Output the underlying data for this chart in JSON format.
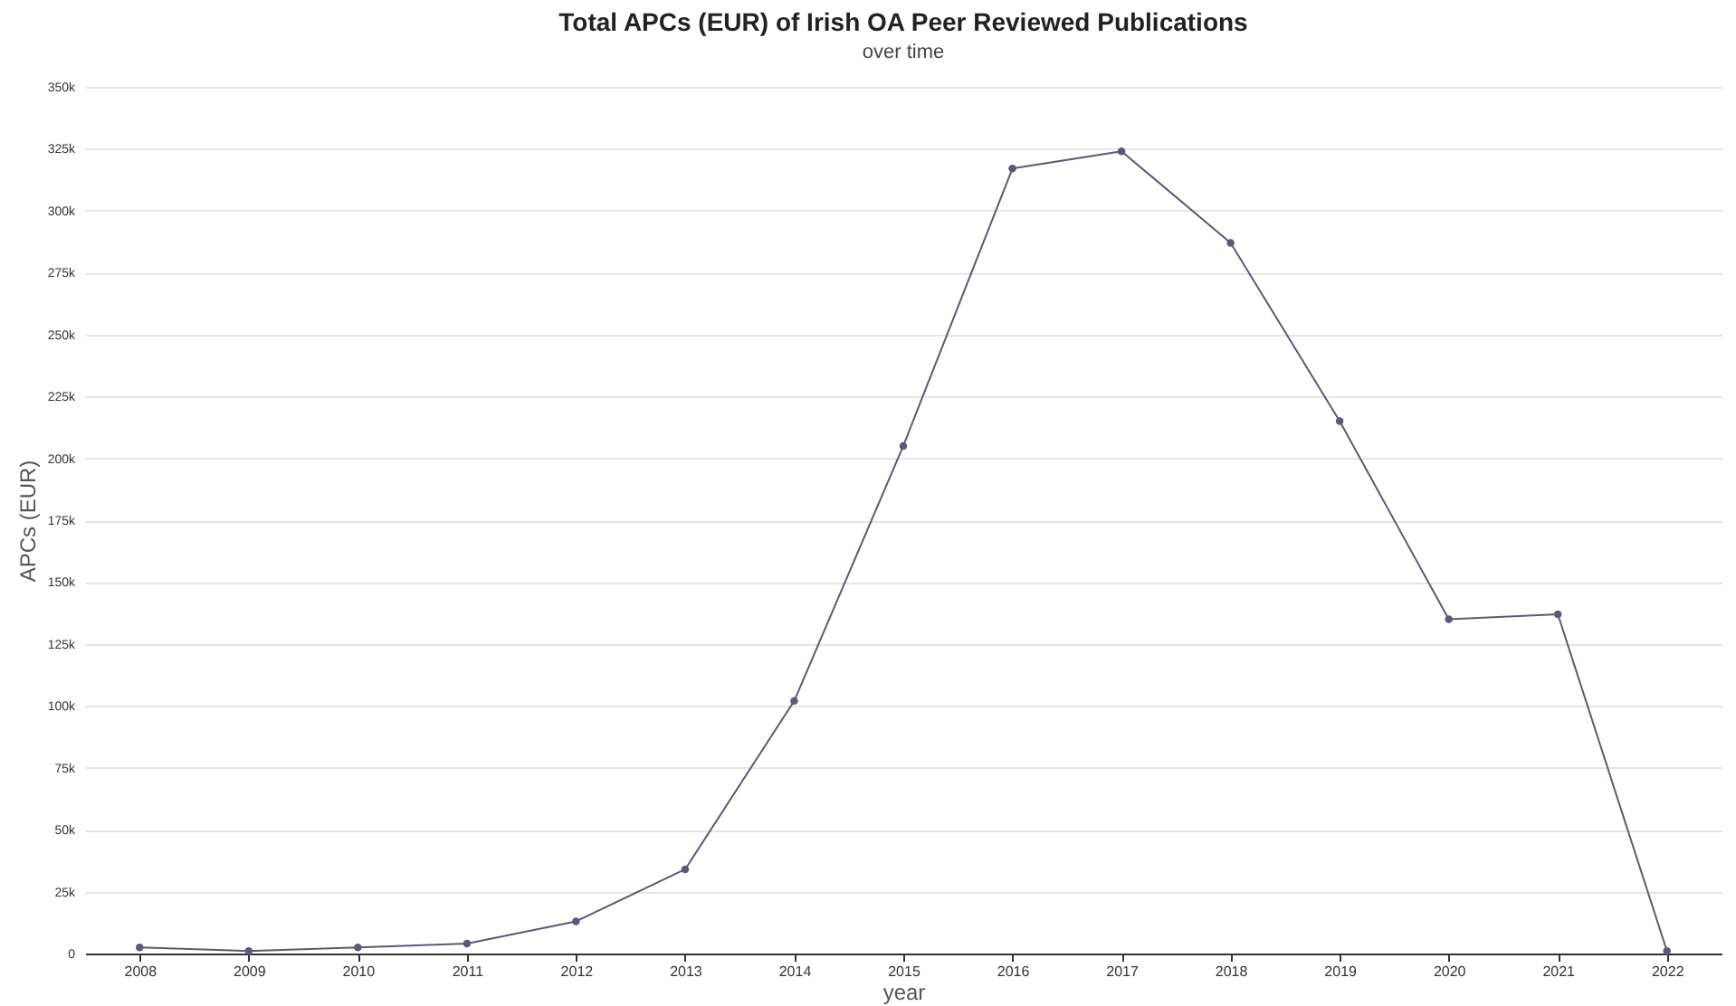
{
  "chart_data": {
    "type": "line",
    "title": "Total APCs (EUR) of Irish OA Peer Reviewed Publications",
    "subtitle": "over time",
    "xlabel": "year",
    "ylabel": "APCs (EUR)",
    "categories": [
      "2008",
      "2009",
      "2010",
      "2011",
      "2012",
      "2013",
      "2014",
      "2015",
      "2016",
      "2017",
      "2018",
      "2019",
      "2020",
      "2021",
      "2022"
    ],
    "series": [
      {
        "color": "#5e5878",
        "values": [
          2500,
          1000,
          2500,
          4000,
          13000,
          34000,
          102000,
          205000,
          317000,
          324000,
          287000,
          215000,
          135000,
          137000,
          1000
        ]
      }
    ],
    "ylim": [
      0,
      350000
    ],
    "yticks": [
      {
        "value": 0,
        "label": "0"
      },
      {
        "value": 25000,
        "label": "25k"
      },
      {
        "value": 50000,
        "label": "50k"
      },
      {
        "value": 75000,
        "label": "75k"
      },
      {
        "value": 100000,
        "label": "100k"
      },
      {
        "value": 125000,
        "label": "125k"
      },
      {
        "value": 150000,
        "label": "150k"
      },
      {
        "value": 175000,
        "label": "175k"
      },
      {
        "value": 200000,
        "label": "200k"
      },
      {
        "value": 225000,
        "label": "225k"
      },
      {
        "value": 250000,
        "label": "250k"
      },
      {
        "value": 275000,
        "label": "275k"
      },
      {
        "value": 300000,
        "label": "300k"
      },
      {
        "value": 325000,
        "label": "325k"
      },
      {
        "value": 350000,
        "label": "350k"
      }
    ],
    "grid": "y",
    "marker": "circle",
    "line_style": "solid"
  }
}
